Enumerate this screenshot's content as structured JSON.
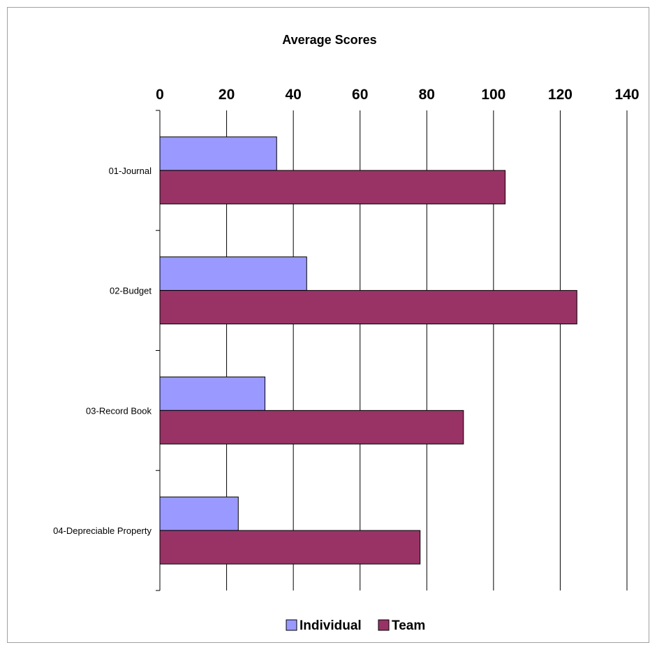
{
  "chart_data": {
    "type": "bar",
    "orientation": "horizontal",
    "title": "Average Scores",
    "xlabel": "",
    "ylabel": "",
    "categories": [
      "01-Journal",
      "02-Budget",
      "03-Record Book",
      "04-Depreciable Property"
    ],
    "series": [
      {
        "name": "Individual",
        "values": [
          35,
          44,
          31.5,
          23.5
        ],
        "color": "#9999ff"
      },
      {
        "name": "Team",
        "values": [
          103.5,
          125,
          91,
          78
        ],
        "color": "#993366"
      }
    ],
    "xlim": [
      0,
      140
    ],
    "xticks": [
      "0",
      "20",
      "40",
      "60",
      "80",
      "100",
      "120",
      "140"
    ],
    "axis_position": "top",
    "grid": true,
    "legend_position": "bottom"
  }
}
